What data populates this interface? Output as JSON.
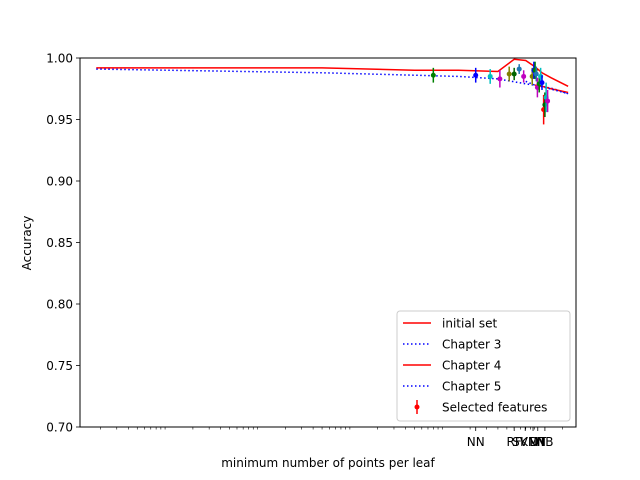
{
  "chart_data": {
    "type": "line",
    "xlabel": "minimum number of points per leaf",
    "ylabel": "Accuracy",
    "xscale": "log",
    "ylim": [
      0.7,
      1.0
    ],
    "yticks": [
      "0.70",
      "0.75",
      "0.80",
      "0.85",
      "0.90",
      "0.95",
      "1.00"
    ],
    "xtick_labels": [
      {
        "label": "NN",
        "x": 230
      },
      {
        "label": "RF",
        "x": 600
      },
      {
        "label": "SVM",
        "x": 790
      },
      {
        "label": "KNN",
        "x": 960
      },
      {
        "label": "DT",
        "x": 1080
      },
      {
        "label": "NB",
        "x": 1290
      }
    ],
    "grid": false,
    "legend_position": "lower right",
    "colors": {
      "red": "#ff0000",
      "blue": "#0000ff",
      "green": "#008000",
      "cyan": "#00bfbf",
      "magenta": "#bf00bf",
      "olive": "#808000",
      "darkgreen": "#006400",
      "steelblue": "#1f77b4"
    },
    "series": [
      {
        "name": "initial set",
        "style": "solid",
        "color": "#ff0000",
        "x": [
          0.018,
          5,
          50,
          150,
          400,
          600,
          800,
          1000,
          1200,
          1500,
          2300
        ],
        "y": [
          0.992,
          0.992,
          0.99,
          0.99,
          0.989,
          0.999,
          0.998,
          0.993,
          0.988,
          0.984,
          0.977
        ]
      },
      {
        "name": "Chapter 3",
        "style": "dotted",
        "color": "#0000ff",
        "x": [
          0.018,
          5,
          50,
          150,
          400,
          800,
          1200,
          1600,
          2300
        ],
        "y": [
          0.991,
          0.988,
          0.986,
          0.985,
          0.983,
          0.979,
          0.977,
          0.975,
          0.971
        ]
      },
      {
        "name": "Chapter 4",
        "style": "solid",
        "color": "#ff0000",
        "x": [
          1000,
          1200,
          1500,
          2300
        ],
        "y": [
          0.978,
          0.977,
          0.975,
          0.972
        ]
      },
      {
        "name": "Chapter 5",
        "style": "dotted",
        "color": "#0000ff",
        "x": [
          800,
          1000,
          1300,
          2300
        ],
        "y": [
          0.981,
          0.978,
          0.976,
          0.971
        ]
      }
    ],
    "errorbars": {
      "name": "Selected features",
      "points": [
        {
          "x": 80,
          "y": 0.986,
          "err": 0.006,
          "color": "#008000"
        },
        {
          "x": 230,
          "y": 0.986,
          "err": 0.006,
          "color": "#0000ff"
        },
        {
          "x": 330,
          "y": 0.985,
          "err": 0.006,
          "color": "#00bfbf"
        },
        {
          "x": 420,
          "y": 0.983,
          "err": 0.007,
          "color": "#bf00bf"
        },
        {
          "x": 530,
          "y": 0.987,
          "err": 0.006,
          "color": "#808000"
        },
        {
          "x": 600,
          "y": 0.987,
          "err": 0.005,
          "color": "#006400"
        },
        {
          "x": 680,
          "y": 0.991,
          "err": 0.004,
          "color": "#1f77b4"
        },
        {
          "x": 760,
          "y": 0.985,
          "err": 0.005,
          "color": "#bf00bf"
        },
        {
          "x": 940,
          "y": 0.985,
          "err": 0.007,
          "color": "#808000"
        },
        {
          "x": 980,
          "y": 0.99,
          "err": 0.007,
          "color": "#0000ff"
        },
        {
          "x": 1010,
          "y": 0.99,
          "err": 0.007,
          "color": "#008000"
        },
        {
          "x": 1040,
          "y": 0.987,
          "err": 0.006,
          "color": "#1f77b4"
        },
        {
          "x": 1070,
          "y": 0.976,
          "err": 0.008,
          "color": "#bf00bf"
        },
        {
          "x": 1120,
          "y": 0.979,
          "err": 0.007,
          "color": "#008000"
        },
        {
          "x": 1160,
          "y": 0.985,
          "err": 0.007,
          "color": "#00bfbf"
        },
        {
          "x": 1200,
          "y": 0.98,
          "err": 0.006,
          "color": "#0000ff"
        },
        {
          "x": 1250,
          "y": 0.958,
          "err": 0.012,
          "color": "#ff0000"
        },
        {
          "x": 1290,
          "y": 0.962,
          "err": 0.01,
          "color": "#006400"
        },
        {
          "x": 1330,
          "y": 0.968,
          "err": 0.012,
          "color": "#00bfbf"
        },
        {
          "x": 1380,
          "y": 0.965,
          "err": 0.009,
          "color": "#bf00bf"
        }
      ]
    },
    "legend": [
      "initial set",
      "Chapter 3",
      "Chapter 4",
      "Chapter 5",
      "Selected features"
    ]
  }
}
